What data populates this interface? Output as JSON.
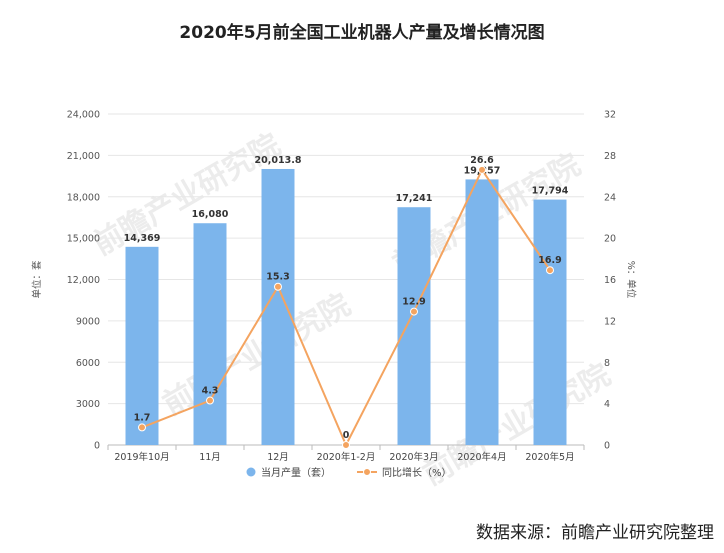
{
  "chart_data": {
    "type": "bar",
    "title": "2020年5月前全国工业机器人产量及增长情况图",
    "categories": [
      "2019年10月",
      "11月",
      "12月",
      "2020年1-2月",
      "2020年3月",
      "2020年4月",
      "2020年5月"
    ],
    "series": [
      {
        "name": "当月产量（套）",
        "type": "bar",
        "axis": "left",
        "color": "#7cb5ec",
        "values": [
          14369,
          16080,
          20013.8,
          null,
          17241,
          19257,
          17794
        ],
        "labels": [
          "14,369",
          "16,080",
          "20,013.8",
          "",
          "17,241",
          "19,257",
          "17,794"
        ]
      },
      {
        "name": "同比增长（%）",
        "type": "line",
        "axis": "right",
        "color": "#f4a460",
        "values": [
          1.7,
          4.3,
          15.3,
          0,
          12.9,
          26.6,
          16.9
        ],
        "labels": [
          "1.7",
          "4.3",
          "15.3",
          "0",
          "12.9",
          "26.6",
          "16.9"
        ]
      }
    ],
    "y_left": {
      "label": "单位：套",
      "ylim": [
        0,
        24000
      ],
      "ticks": [
        "0",
        "3000",
        "6000",
        "9000",
        "12,000",
        "15,000",
        "18,000",
        "21,000",
        "24,000"
      ]
    },
    "y_right": {
      "label": "%：单位",
      "ylim": [
        0,
        32
      ],
      "ticks": [
        "0",
        "4",
        "8",
        "12",
        "16",
        "20",
        "24",
        "28",
        "32"
      ]
    },
    "grid": true,
    "legend_position": "bottom"
  },
  "source": "数据来源：前瞻产业研究院整理",
  "watermark": "前瞻产业研究院"
}
